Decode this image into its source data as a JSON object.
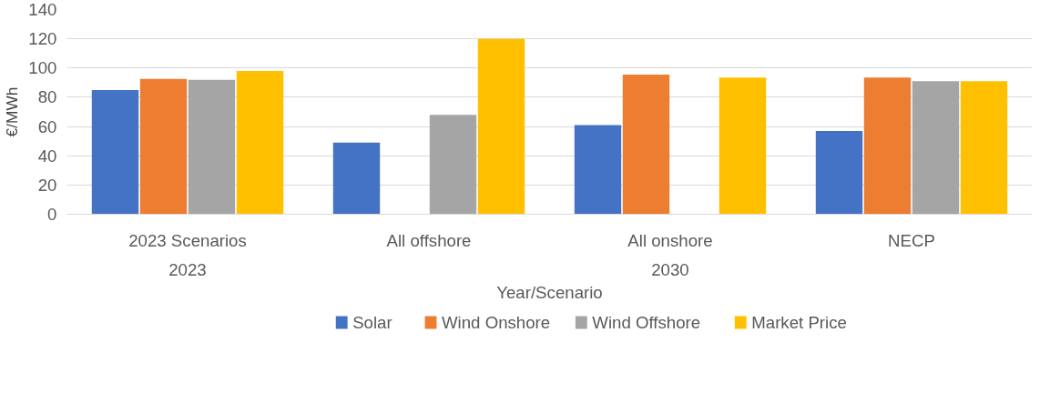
{
  "chart_data": {
    "type": "bar",
    "ylabel": "€/MWh",
    "xlabel": "Year/Scenario",
    "categories": [
      "2023 Scenarios",
      "All offshore",
      "All onshore",
      "NECP"
    ],
    "annotations": [
      "2023",
      "2030"
    ],
    "series": [
      {
        "name": "Solar",
        "color": "#4472c4",
        "values": [
          85,
          49,
          61,
          57
        ]
      },
      {
        "name": "Wind Onshore",
        "color": "#ed7d31",
        "values": [
          92.5,
          null,
          95.5,
          93.5
        ]
      },
      {
        "name": "Wind Offshore",
        "color": "#a5a5a5",
        "values": [
          92,
          68,
          null,
          91
        ]
      },
      {
        "name": "Market Price",
        "color": "#ffc000",
        "values": [
          98,
          120,
          93.5,
          91
        ]
      }
    ],
    "ylim": [
      0,
      140
    ],
    "yticks": [
      0,
      20,
      40,
      60,
      80,
      100,
      120,
      140
    ],
    "grid": "y",
    "legend": "bottom"
  }
}
